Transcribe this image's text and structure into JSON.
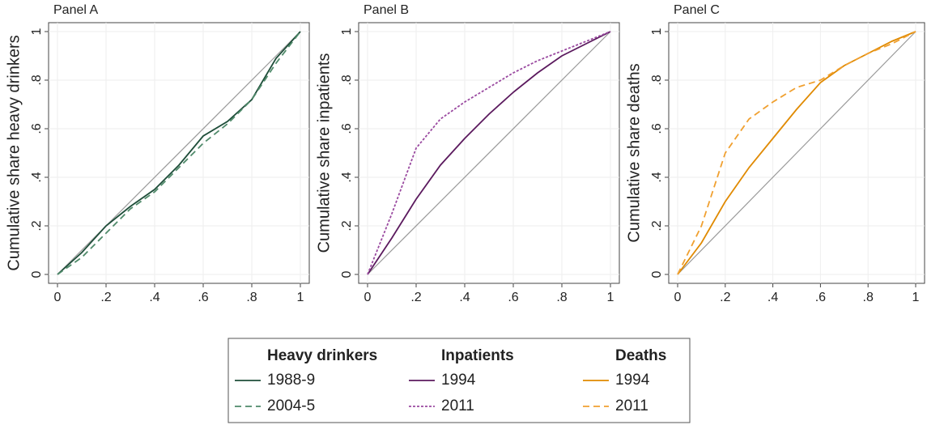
{
  "chart_data": [
    {
      "type": "line",
      "title": "Panel A",
      "ylabel": "Cumulative share heavy drinkers",
      "legend_title": "Heavy drinkers",
      "x": [
        0,
        0.1,
        0.2,
        0.3,
        0.4,
        0.5,
        0.6,
        0.7,
        0.8,
        0.9,
        1
      ],
      "series": [
        {
          "name": "1988-9",
          "color": "#1f4e3a",
          "line_style": "solid",
          "values": [
            0,
            0.09,
            0.2,
            0.28,
            0.35,
            0.45,
            0.57,
            0.63,
            0.72,
            0.89,
            1
          ]
        },
        {
          "name": "2004-5",
          "color": "#4f8a6a",
          "line_style": "dashed",
          "values": [
            0,
            0.07,
            0.17,
            0.27,
            0.34,
            0.44,
            0.54,
            0.62,
            0.72,
            0.87,
            1
          ]
        }
      ],
      "xlim": [
        0,
        1
      ],
      "ylim": [
        0,
        1
      ],
      "xticks": [
        0,
        {
          "value": 0.2,
          "label": ".2"
        },
        {
          "value": 0.4,
          "label": ".4"
        },
        {
          "value": 0.6,
          "label": ".6"
        },
        {
          "value": 0.8,
          "label": ".8"
        },
        1
      ],
      "yticks": [
        0,
        {
          "value": 0.2,
          "label": ".2"
        },
        {
          "value": 0.4,
          "label": ".4"
        },
        {
          "value": 0.6,
          "label": ".6"
        },
        {
          "value": 0.8,
          "label": ".8"
        },
        1
      ],
      "grid": true,
      "diagonal": true
    },
    {
      "type": "line",
      "title": "Panel B",
      "ylabel": "Cumulative share inpatients",
      "legend_title": "Inpatients",
      "x": [
        0,
        0.1,
        0.2,
        0.3,
        0.4,
        0.5,
        0.6,
        0.7,
        0.8,
        0.9,
        1
      ],
      "series": [
        {
          "name": "1994",
          "color": "#5b1a5e",
          "line_style": "solid",
          "values": [
            0,
            0.15,
            0.31,
            0.45,
            0.56,
            0.66,
            0.75,
            0.83,
            0.9,
            0.95,
            1
          ]
        },
        {
          "name": "2011",
          "color": "#9a4aa0",
          "line_style": "dotted",
          "values": [
            0,
            0.25,
            0.52,
            0.64,
            0.71,
            0.77,
            0.83,
            0.88,
            0.92,
            0.96,
            1
          ]
        }
      ],
      "xlim": [
        0,
        1
      ],
      "ylim": [
        0,
        1
      ],
      "xticks": [
        0,
        {
          "value": 0.2,
          "label": ".2"
        },
        {
          "value": 0.4,
          "label": ".4"
        },
        {
          "value": 0.6,
          "label": ".6"
        },
        {
          "value": 0.8,
          "label": ".8"
        },
        1
      ],
      "yticks": [
        0,
        {
          "value": 0.2,
          "label": ".2"
        },
        {
          "value": 0.4,
          "label": ".4"
        },
        {
          "value": 0.6,
          "label": ".6"
        },
        {
          "value": 0.8,
          "label": ".8"
        },
        1
      ],
      "grid": true,
      "diagonal": true
    },
    {
      "type": "line",
      "title": "Panel C",
      "ylabel": "Cumulative share deaths",
      "legend_title": "Deaths",
      "x": [
        0,
        0.1,
        0.2,
        0.3,
        0.4,
        0.5,
        0.6,
        0.7,
        0.8,
        0.9,
        1
      ],
      "series": [
        {
          "name": "1994",
          "color": "#e08a00",
          "line_style": "solid",
          "values": [
            0,
            0.13,
            0.3,
            0.44,
            0.56,
            0.68,
            0.79,
            0.86,
            0.91,
            0.96,
            1
          ]
        },
        {
          "name": "2011",
          "color": "#f0a030",
          "line_style": "dashed",
          "values": [
            0,
            0.2,
            0.5,
            0.64,
            0.71,
            0.77,
            0.8,
            0.86,
            0.91,
            0.95,
            1
          ]
        }
      ],
      "xlim": [
        0,
        1
      ],
      "ylim": [
        0,
        1
      ],
      "xticks": [
        0,
        {
          "value": 0.2,
          "label": ".2"
        },
        {
          "value": 0.4,
          "label": ".4"
        },
        {
          "value": 0.6,
          "label": ".6"
        },
        {
          "value": 0.8,
          "label": ".8"
        },
        1
      ],
      "yticks": [
        0,
        {
          "value": 0.2,
          "label": ".2"
        },
        {
          "value": 0.4,
          "label": ".4"
        },
        {
          "value": 0.6,
          "label": ".6"
        },
        {
          "value": 0.8,
          "label": ".8"
        },
        1
      ],
      "grid": true,
      "diagonal": true
    }
  ]
}
